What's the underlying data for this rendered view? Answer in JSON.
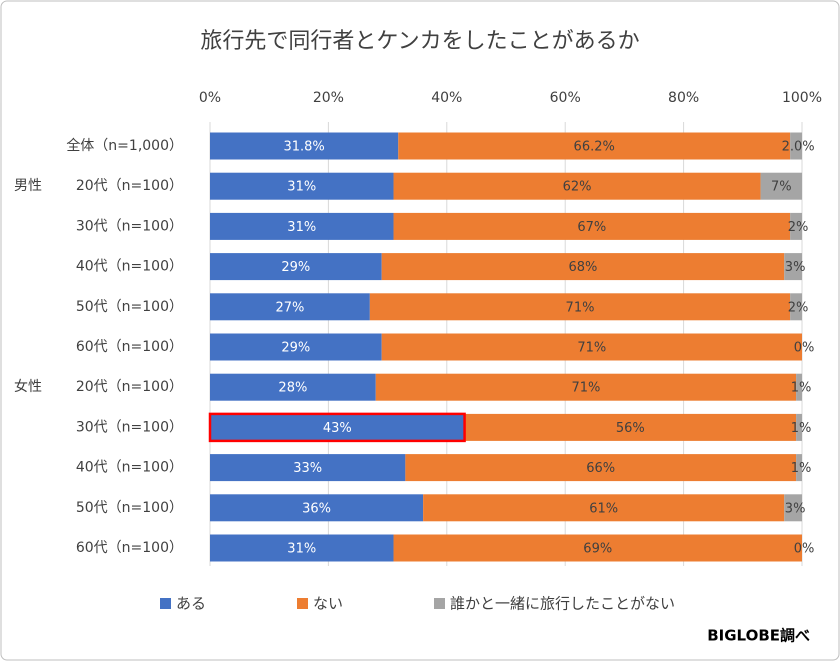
{
  "chart_data": {
    "type": "stacked_barh",
    "title": "旅行先で同行者とケンカをしたことがあるか",
    "categories": [
      "全体（n=1,000）",
      "20代（n=100）",
      "30代（n=100）",
      "40代（n=100）",
      "50代（n=100）",
      "60代（n=100）",
      "20代（n=100）",
      "30代（n=100）",
      "40代（n=100）",
      "50代（n=100）",
      "60代（n=100）"
    ],
    "category_groups": [
      null,
      "男性",
      null,
      null,
      null,
      null,
      "女性",
      null,
      null,
      null,
      null
    ],
    "series": [
      {
        "name": "ある",
        "color": "#4472c4",
        "label_color": "#ffffff",
        "values": [
          31.8,
          31,
          31,
          29,
          27,
          29,
          28,
          43,
          33,
          36,
          31
        ],
        "value_labels": [
          "31.8%",
          "31%",
          "31%",
          "29%",
          "27%",
          "29%",
          "28%",
          "43%",
          "33%",
          "36%",
          "31%"
        ]
      },
      {
        "name": "ない",
        "color": "#ed7d31",
        "label_color": "#404040",
        "values": [
          66.2,
          62,
          67,
          68,
          71,
          71,
          71,
          56,
          66,
          61,
          69
        ],
        "value_labels": [
          "66.2%",
          "62%",
          "67%",
          "68%",
          "71%",
          "71%",
          "71%",
          "56%",
          "66%",
          "61%",
          "69%"
        ]
      },
      {
        "name": "誰かと一緒に旅行したことがない",
        "color": "#a5a5a5",
        "label_color": "#404040",
        "values": [
          2,
          7,
          2,
          3,
          2,
          0,
          1,
          1,
          1,
          3,
          0
        ],
        "value_labels": [
          "2.0%",
          "7%",
          "2%",
          "3%",
          "2%",
          "0%",
          "1%",
          "1%",
          "1%",
          "3%",
          "0%"
        ]
      }
    ],
    "xlim": [
      0,
      100
    ],
    "xticks": [
      {
        "value": 0,
        "label": "0%"
      },
      {
        "value": 20,
        "label": "20%"
      },
      {
        "value": 40,
        "label": "40%"
      },
      {
        "value": 60,
        "label": "60%"
      },
      {
        "value": 80,
        "label": "80%"
      },
      {
        "value": 100,
        "label": "100%"
      }
    ],
    "grid": true,
    "highlight": {
      "series": 0,
      "index": 7,
      "color": "#ff0000"
    },
    "source": "BIGLOBE調べ"
  }
}
